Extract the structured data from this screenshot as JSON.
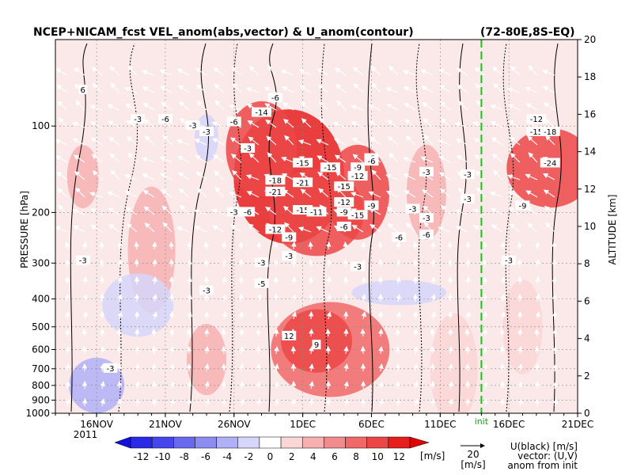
{
  "chart_data": {
    "type": "heatmap",
    "title": "NCEP+NICAM_fcst VEL_anom(abs,vector) & U_anom(contour)",
    "region": "(72-80E,8S-EQ)",
    "left_axis": {
      "label": "PRESSURE [hPa]",
      "ticks": [
        "100",
        "200",
        "300",
        "400",
        "500",
        "600",
        "700",
        "800",
        "900",
        "1000"
      ],
      "scale": "log",
      "range": [
        1000,
        50
      ]
    },
    "right_axis": {
      "label": "ALTITUDE [km]",
      "ticks": [
        "0",
        "2",
        "4",
        "6",
        "8",
        "10",
        "12",
        "14",
        "16",
        "18",
        "20"
      ],
      "range": [
        0,
        20
      ]
    },
    "x_axis": {
      "ticks": [
        "16NOV",
        "21NOV",
        "26NOV",
        "1DEC",
        "6DEC",
        "11DEC",
        "16DEC",
        "21DEC"
      ],
      "tick_dates": [
        "2011-11-16",
        "2011-11-21",
        "2011-11-26",
        "2011-12-01",
        "2011-12-06",
        "2011-12-11",
        "2011-12-16",
        "2011-12-21"
      ],
      "year_label": "2011",
      "range": [
        "2011-11-13",
        "2011-12-21"
      ]
    },
    "init": {
      "label": "init",
      "date": "2011-12-14"
    },
    "colorbar": {
      "ticks": [
        "-12",
        "-10",
        "-8",
        "-6",
        "-4",
        "-2",
        "0",
        "2",
        "4",
        "6",
        "8",
        "10",
        "12"
      ],
      "unit": "[m/s]",
      "levels": [
        -12,
        -10,
        -8,
        -6,
        -4,
        -2,
        0,
        2,
        4,
        6,
        8,
        10,
        12
      ],
      "colors": [
        "#2a2ae6",
        "#4646ec",
        "#6868f0",
        "#8c8cf2",
        "#b0b0f6",
        "#d6d6fa",
        "#ffffff",
        "#fad6d6",
        "#f6b0b0",
        "#f28c8c",
        "#f06868",
        "#ec4646",
        "#e61e1e"
      ]
    },
    "vector_scale": {
      "value": "20",
      "unit": "[m/s]"
    },
    "legend_note": [
      "U(black) [m/s]",
      "vector: (U,V)",
      "anom from init"
    ],
    "grid": true,
    "contour_labels": [
      {
        "text": "6",
        "date": "2011-11-15",
        "p": 75
      },
      {
        "text": "-3",
        "date": "2011-11-23",
        "p": 100
      },
      {
        "text": "-3",
        "date": "2011-11-19",
        "p": 95
      },
      {
        "text": "-6",
        "date": "2011-11-21",
        "p": 95
      },
      {
        "text": "-6",
        "date": "2011-11-26",
        "p": 97
      },
      {
        "text": "-3",
        "date": "2011-11-24",
        "p": 105
      },
      {
        "text": "-6",
        "date": "2011-11-29",
        "p": 80
      },
      {
        "text": "-14",
        "date": "2011-11-28",
        "p": 90
      },
      {
        "text": "-3",
        "date": "2011-11-27",
        "p": 120
      },
      {
        "text": "-15",
        "date": "2011-12-01",
        "p": 135
      },
      {
        "text": "-18",
        "date": "2011-11-29",
        "p": 155
      },
      {
        "text": "-21",
        "date": "2011-12-01",
        "p": 158
      },
      {
        "text": "-21",
        "date": "2011-11-29",
        "p": 170
      },
      {
        "text": "-15",
        "date": "2011-12-03",
        "p": 140
      },
      {
        "text": "-9",
        "date": "2011-12-05",
        "p": 140
      },
      {
        "text": "-12",
        "date": "2011-12-05",
        "p": 150
      },
      {
        "text": "-15",
        "date": "2011-12-04",
        "p": 163
      },
      {
        "text": "-12",
        "date": "2011-12-04",
        "p": 185
      },
      {
        "text": "-3",
        "date": "2011-12-06",
        "p": 130
      },
      {
        "text": "-6",
        "date": "2011-12-06",
        "p": 133
      },
      {
        "text": "-3",
        "date": "2011-12-10",
        "p": 145
      },
      {
        "text": "-3",
        "date": "2011-12-13",
        "p": 148
      },
      {
        "text": "-3",
        "date": "2011-12-13",
        "p": 180
      },
      {
        "text": "-9",
        "date": "2011-12-06",
        "p": 190
      },
      {
        "text": "-3",
        "date": "2011-12-09",
        "p": 195
      },
      {
        "text": "-15",
        "date": "2011-12-01",
        "p": 197
      },
      {
        "text": "-11",
        "date": "2011-12-02",
        "p": 200
      },
      {
        "text": "-9",
        "date": "2011-12-04",
        "p": 200
      },
      {
        "text": "-15",
        "date": "2011-12-05",
        "p": 205
      },
      {
        "text": "-3",
        "date": "2011-11-26",
        "p": 200
      },
      {
        "text": "-6",
        "date": "2011-11-27",
        "p": 200
      },
      {
        "text": "-12",
        "date": "2011-11-29",
        "p": 230
      },
      {
        "text": "-9",
        "date": "2011-11-30",
        "p": 245
      },
      {
        "text": "-6",
        "date": "2011-12-04",
        "p": 225
      },
      {
        "text": "-6",
        "date": "2011-12-08",
        "p": 245
      },
      {
        "text": "-6",
        "date": "2011-12-10",
        "p": 240
      },
      {
        "text": "-3",
        "date": "2011-12-10",
        "p": 210
      },
      {
        "text": "-3",
        "date": "2011-11-30",
        "p": 285
      },
      {
        "text": "-3",
        "date": "2011-11-28",
        "p": 300
      },
      {
        "text": "-3",
        "date": "2011-11-15",
        "p": 295
      },
      {
        "text": "-3",
        "date": "2011-11-24",
        "p": 375
      },
      {
        "text": "-5",
        "date": "2011-11-28",
        "p": 355
      },
      {
        "text": "-3",
        "date": "2011-12-05",
        "p": 310
      },
      {
        "text": "12",
        "date": "2011-11-30",
        "p": 540
      },
      {
        "text": "9",
        "date": "2011-12-02",
        "p": 580
      },
      {
        "text": "-3",
        "date": "2011-11-17",
        "p": 700
      },
      {
        "text": "-12",
        "date": "2011-12-18",
        "p": 95
      },
      {
        "text": "-15",
        "date": "2011-12-18",
        "p": 105
      },
      {
        "text": "-18",
        "date": "2011-12-19",
        "p": 105
      },
      {
        "text": "-24",
        "date": "2011-12-19",
        "p": 135
      },
      {
        "text": "-9",
        "date": "2011-12-17",
        "p": 190
      },
      {
        "text": "-3",
        "date": "2011-12-16",
        "p": 295
      }
    ],
    "annotations": [
      "6",
      "0",
      "3",
      "-3",
      "6",
      "0",
      "9",
      "6",
      "3",
      "0"
    ]
  }
}
